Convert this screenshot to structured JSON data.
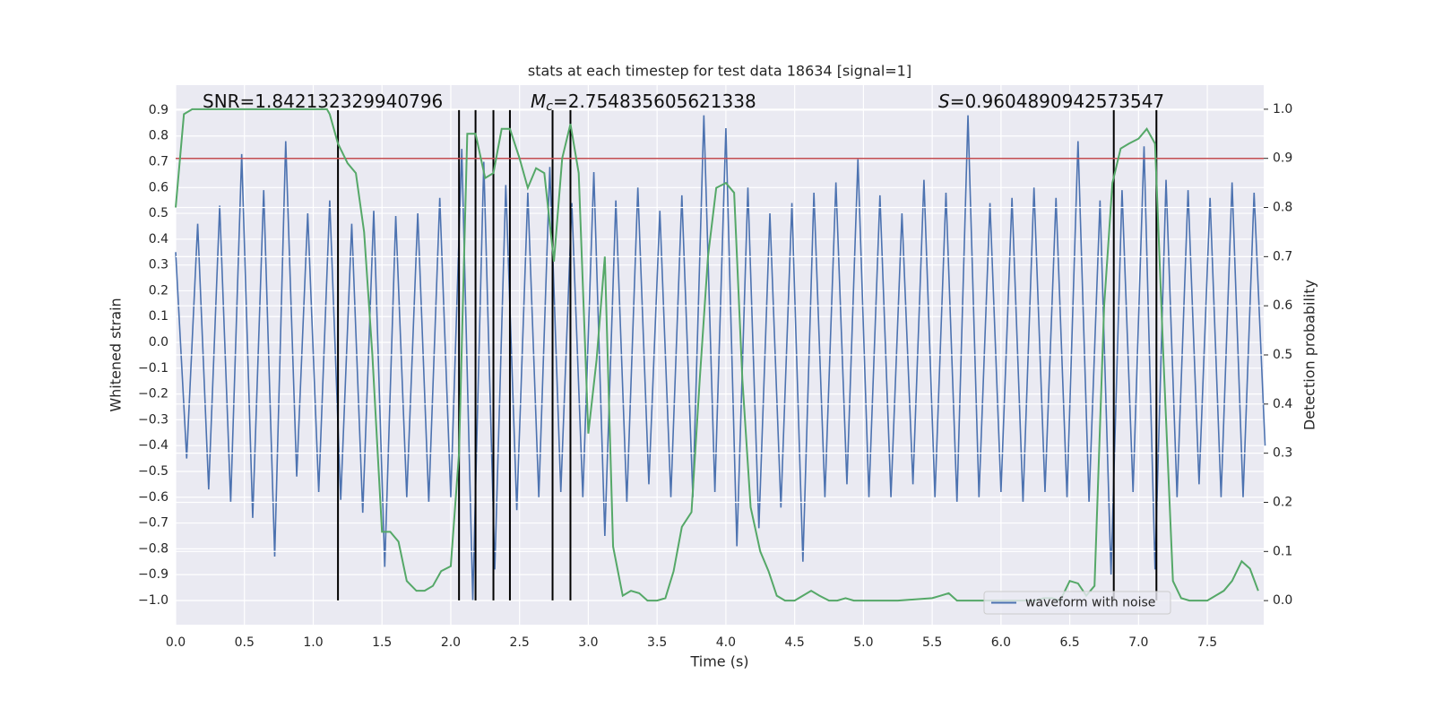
{
  "chart_data": {
    "type": "line",
    "title": "stats at each timestep for test data 18634 [signal=1]",
    "x_label": "Time (s)",
    "y_label": "Whitened strain",
    "y2_label": "Detection probability",
    "annotations": [
      {
        "text": "SNR=1.842132329940796"
      },
      {
        "italic": "M",
        "sub": "c",
        "text": "=2.754835605621338"
      },
      {
        "italic": "S",
        "text": "=0.9604890942573547"
      }
    ],
    "xlim": [
      0,
      7.91
    ],
    "ylim": [
      -1.094,
      0.997
    ],
    "y2lim": [
      -0.049,
      1.049
    ],
    "xticks": [
      {
        "value": 0,
        "label": "0.0"
      },
      0.5,
      {
        "value": 1,
        "label": "1.0"
      },
      1.5,
      {
        "value": 2,
        "label": "2.0"
      },
      2.5,
      {
        "value": 3,
        "label": "3.0"
      },
      3.5,
      {
        "value": 4,
        "label": "4.0"
      },
      4.5,
      {
        "value": 5,
        "label": "5.0"
      },
      5.5,
      {
        "value": 6,
        "label": "6.0"
      },
      6.5,
      {
        "value": 7,
        "label": "7.0"
      },
      7.5
    ],
    "yticks": [
      {
        "value": -1.0,
        "label": "−1.0"
      },
      {
        "value": -0.9,
        "label": "−0.9"
      },
      {
        "value": -0.8,
        "label": "−0.8"
      },
      {
        "value": -0.7,
        "label": "−0.7"
      },
      {
        "value": -0.6,
        "label": "−0.6"
      },
      {
        "value": -0.5,
        "label": "−0.5"
      },
      {
        "value": -0.4,
        "label": "−0.4"
      },
      {
        "value": -0.3,
        "label": "−0.3"
      },
      {
        "value": -0.2,
        "label": "−0.2"
      },
      {
        "value": -0.1,
        "label": "−0.1"
      },
      {
        "value": 0,
        "label": "0.0"
      },
      0.1,
      0.2,
      0.3,
      0.4,
      0.5,
      0.6,
      0.7,
      0.8,
      0.9
    ],
    "y2ticks": [
      {
        "value": 0,
        "label": "0.0"
      },
      0.1,
      0.2,
      0.3,
      0.4,
      0.5,
      0.6,
      0.7,
      0.8,
      0.9,
      {
        "value": 1,
        "label": "1.0"
      }
    ],
    "grid": true,
    "legend": "lower right",
    "series": [
      {
        "name": "waveform with noise",
        "color": "#4c72b0",
        "x": [
          0,
          0.08,
          0.16,
          0.24,
          0.32,
          0.4,
          0.48,
          0.56,
          0.64,
          0.72,
          0.8,
          0.88,
          0.96,
          1.04,
          1.12,
          1.2,
          1.28,
          1.36,
          1.44,
          1.52,
          1.6,
          1.68,
          1.76,
          1.84,
          1.92,
          2,
          2.08,
          2.16,
          2.24,
          2.32,
          2.4,
          2.48,
          2.56,
          2.64,
          2.72,
          2.8,
          2.88,
          2.96,
          3.04,
          3.12,
          3.2,
          3.28,
          3.36,
          3.44,
          3.52,
          3.6,
          3.68,
          3.76,
          3.84,
          3.92,
          4,
          4.08,
          4.16,
          4.24,
          4.32,
          4.4,
          4.48,
          4.56,
          4.64,
          4.72,
          4.8,
          4.88,
          4.96,
          5.04,
          5.12,
          5.2,
          5.28,
          5.36,
          5.44,
          5.52,
          5.6,
          5.68,
          5.76,
          5.84,
          5.92,
          6,
          6.08,
          6.16,
          6.24,
          6.32,
          6.4,
          6.48,
          6.56,
          6.64,
          6.72,
          6.8,
          6.88,
          6.96,
          7.04,
          7.12,
          7.2,
          7.28,
          7.36,
          7.44,
          7.52,
          7.6,
          7.68,
          7.76,
          7.84,
          7.92
        ],
        "values": [
          0.35,
          -0.45,
          0.46,
          -0.57,
          0.53,
          -0.62,
          0.73,
          -0.68,
          0.59,
          -0.83,
          0.78,
          -0.52,
          0.5,
          -0.58,
          0.55,
          -0.61,
          0.46,
          -0.66,
          0.51,
          -0.87,
          0.49,
          -0.6,
          0.5,
          -0.62,
          0.56,
          -0.6,
          0.75,
          -1.0,
          0.7,
          -0.88,
          0.61,
          -0.65,
          0.58,
          -0.6,
          0.68,
          -0.58,
          0.54,
          -0.6,
          0.66,
          -0.75,
          0.55,
          -0.62,
          0.6,
          -0.55,
          0.51,
          -0.6,
          0.57,
          -0.6,
          0.88,
          -0.58,
          0.83,
          -0.79,
          0.6,
          -0.72,
          0.5,
          -0.64,
          0.54,
          -0.85,
          0.58,
          -0.6,
          0.62,
          -0.55,
          0.71,
          -0.6,
          0.57,
          -0.6,
          0.5,
          -0.55,
          0.63,
          -0.6,
          0.58,
          -0.62,
          0.88,
          -0.6,
          0.54,
          -0.58,
          0.56,
          -0.62,
          0.6,
          -0.58,
          0.56,
          -0.6,
          0.78,
          -0.62,
          0.55,
          -0.9,
          0.59,
          -0.58,
          0.76,
          -0.88,
          0.63,
          -0.6,
          0.59,
          -0.55,
          0.56,
          -0.6,
          0.62,
          -0.6,
          0.58,
          -0.4
        ]
      },
      {
        "color": "#55a868",
        "axis": "y2",
        "x": [
          0,
          0.06,
          0.12,
          0.25,
          0.5,
          0.75,
          1,
          1.1,
          1.12,
          1.18,
          1.25,
          1.31,
          1.37,
          1.43,
          1.5,
          1.56,
          1.62,
          1.68,
          1.75,
          1.81,
          1.87,
          1.93,
          2,
          2.06,
          2.12,
          2.18,
          2.25,
          2.31,
          2.37,
          2.43,
          2.5,
          2.56,
          2.62,
          2.68,
          2.75,
          2.81,
          2.87,
          2.93,
          3,
          3.06,
          3.12,
          3.18,
          3.25,
          3.31,
          3.37,
          3.43,
          3.5,
          3.56,
          3.62,
          3.68,
          3.75,
          3.81,
          3.87,
          3.93,
          4,
          4.06,
          4.12,
          4.18,
          4.25,
          4.31,
          4.37,
          4.43,
          4.5,
          4.56,
          4.62,
          4.68,
          4.75,
          4.81,
          4.87,
          4.93,
          5,
          5.25,
          5.5,
          5.56,
          5.62,
          5.68,
          5.75,
          6,
          6.25,
          6.31,
          6.37,
          6.43,
          6.5,
          6.56,
          6.62,
          6.68,
          6.75,
          6.81,
          6.87,
          6.93,
          7,
          7.06,
          7.12,
          7.18,
          7.25,
          7.31,
          7.37,
          7.5,
          7.56,
          7.62,
          7.68,
          7.75,
          7.81,
          7.87
        ],
        "values": [
          0.8,
          0.99,
          1.0,
          1.0,
          1.0,
          1.0,
          1.0,
          1.0,
          0.99,
          0.93,
          0.89,
          0.87,
          0.75,
          0.5,
          0.14,
          0.14,
          0.12,
          0.04,
          0.02,
          0.02,
          0.03,
          0.06,
          0.07,
          0.3,
          0.95,
          0.95,
          0.86,
          0.87,
          0.96,
          0.96,
          0.9,
          0.84,
          0.88,
          0.87,
          0.69,
          0.9,
          0.97,
          0.87,
          0.34,
          0.49,
          0.7,
          0.11,
          0.01,
          0.02,
          0.015,
          0.0,
          0.0,
          0.005,
          0.06,
          0.15,
          0.18,
          0.45,
          0.7,
          0.84,
          0.85,
          0.83,
          0.45,
          0.19,
          0.1,
          0.06,
          0.01,
          0.0,
          0.0,
          0.01,
          0.02,
          0.01,
          0.0,
          0.0,
          0.005,
          0.0,
          0.0,
          0.0,
          0.005,
          0.01,
          0.015,
          0.0,
          0.0,
          0.0,
          0.0,
          0.005,
          0.005,
          0.0,
          0.04,
          0.035,
          0.01,
          0.03,
          0.6,
          0.85,
          0.92,
          0.93,
          0.94,
          0.96,
          0.93,
          0.5,
          0.04,
          0.005,
          0.0,
          0.0,
          0.01,
          0.02,
          0.04,
          0.08,
          0.065,
          0.02
        ]
      }
    ],
    "threshold": {
      "value": 0.9,
      "axis": "y2",
      "color": "#c44e52"
    },
    "vlines": [
      1.18,
      2.06,
      2.18,
      2.31,
      2.43,
      2.74,
      2.87,
      6.82,
      7.13
    ],
    "vline_range": [
      -1.0,
      0.9
    ],
    "vline_color": "#000000",
    "background": "#eaeaf2"
  }
}
